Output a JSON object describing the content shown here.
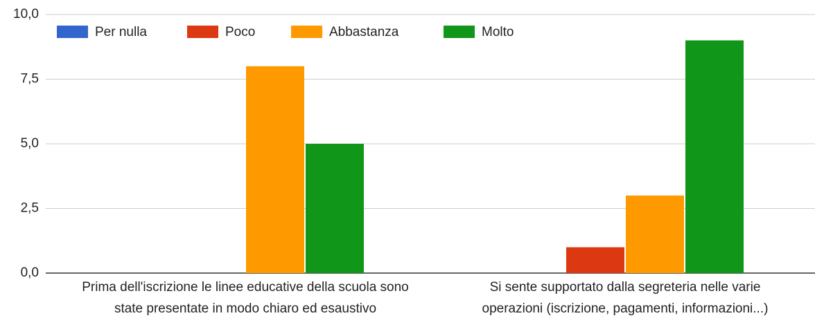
{
  "chart_data": {
    "type": "bar",
    "categories": [
      "Prima dell'iscrizione le linee educative della scuola sono state presentate in modo chiaro ed esaustivo",
      "Si sente supportato dalla segreteria nelle varie operazioni (iscrizione, pagamenti, informazioni...)"
    ],
    "series": [
      {
        "name": "Per nulla",
        "color": "#3366cc",
        "values": [
          0,
          0
        ]
      },
      {
        "name": "Poco",
        "color": "#dc3912",
        "values": [
          0,
          1
        ]
      },
      {
        "name": "Abbastanza",
        "color": "#ff9900",
        "values": [
          8,
          3
        ]
      },
      {
        "name": "Molto",
        "color": "#109618",
        "values": [
          5,
          9
        ]
      }
    ],
    "ylim": [
      0,
      10
    ],
    "yticks": [
      {
        "value": 0,
        "label": "0,0"
      },
      {
        "value": 2.5,
        "label": "2,5"
      },
      {
        "value": 5,
        "label": "5,0"
      },
      {
        "value": 7.5,
        "label": "7,5"
      },
      {
        "value": 10,
        "label": "10,0"
      }
    ],
    "grid": true,
    "legend": "top"
  }
}
